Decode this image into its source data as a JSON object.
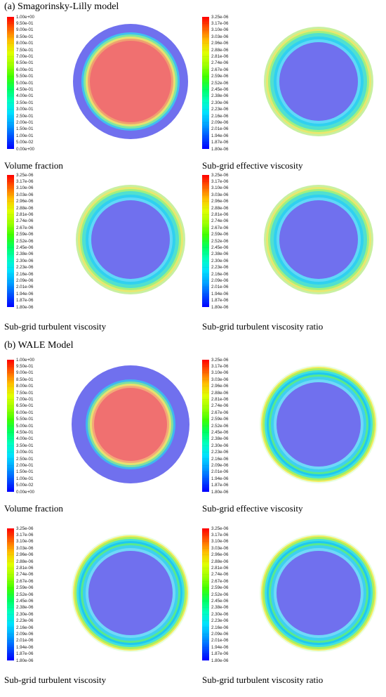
{
  "sections": [
    {
      "title": "(a) Smagorinsky-Lilly model",
      "panels": [
        {
          "caption": "Volume fraction",
          "type": "volume",
          "ticks": [
            "1.00e+00",
            "9.50e-01",
            "9.00e-01",
            "8.50e-01",
            "8.00e-01",
            "7.50e-01",
            "7.00e-01",
            "6.50e-01",
            "6.00e-01",
            "5.50e-01",
            "5.00e-01",
            "4.50e-01",
            "4.00e-01",
            "3.50e-01",
            "3.00e-01",
            "2.50e-01",
            "2.00e-01",
            "1.50e-01",
            "1.00e-01",
            "5.00e-02",
            "0.00e+00"
          ]
        },
        {
          "caption": "Sub-grid effective viscosity",
          "type": "visc",
          "ticks": [
            "3.25e-06",
            "3.17e-06",
            "3.10e-06",
            "3.03e-06",
            "2.96e-06",
            "2.88e-06",
            "2.81e-06",
            "2.74e-06",
            "2.67e-06",
            "2.59e-06",
            "2.52e-06",
            "2.45e-06",
            "2.38e-06",
            "2.30e-06",
            "2.23e-06",
            "2.16e-06",
            "2.09e-06",
            "2.01e-06",
            "1.94e-06",
            "1.87e-06",
            "1.80e-06"
          ]
        },
        {
          "caption": "Sub-grid turbulent viscosity",
          "type": "visc",
          "ticks": [
            "3.25e-06",
            "3.17e-06",
            "3.10e-06",
            "3.03e-06",
            "2.96e-06",
            "2.88e-06",
            "2.81e-06",
            "2.74e-06",
            "2.67e-06",
            "2.59e-06",
            "2.52e-06",
            "2.45e-06",
            "2.38e-06",
            "2.30e-06",
            "2.23e-06",
            "2.16e-06",
            "2.09e-06",
            "2.01e-06",
            "1.94e-06",
            "1.87e-06",
            "1.80e-06"
          ]
        },
        {
          "caption": "Sub-grid turbulent viscosity ratio",
          "type": "visc",
          "ticks": [
            "3.25e-06",
            "3.17e-06",
            "3.10e-06",
            "3.03e-06",
            "2.96e-06",
            "2.88e-06",
            "2.81e-06",
            "2.74e-06",
            "2.67e-06",
            "2.59e-06",
            "2.52e-06",
            "2.45e-06",
            "2.38e-06",
            "2.30e-06",
            "2.23e-06",
            "2.16e-06",
            "2.09e-06",
            "2.01e-06",
            "1.94e-06",
            "1.87e-06",
            "1.80e-06"
          ]
        }
      ]
    },
    {
      "title": "(b) WALE Model",
      "panels": [
        {
          "caption": "Volume fraction",
          "type": "volume",
          "ticks": [
            "1.00e+00",
            "9.50e-01",
            "9.00e-01",
            "8.50e-01",
            "8.00e-01",
            "7.50e-01",
            "7.00e-01",
            "6.50e-01",
            "6.00e-01",
            "5.50e-01",
            "5.00e-01",
            "4.50e-01",
            "4.00e-01",
            "3.50e-01",
            "3.00e-01",
            "2.50e-01",
            "2.00e-01",
            "1.50e-01",
            "1.00e-01",
            "5.00e-02",
            "0.00e+00"
          ]
        },
        {
          "caption": "Sub-grid effective viscosity",
          "type": "visc",
          "ticks": [
            "3.25e-06",
            "3.17e-06",
            "3.10e-06",
            "3.03e-06",
            "2.96e-06",
            "2.88e-06",
            "2.81e-06",
            "2.74e-06",
            "2.67e-06",
            "2.59e-06",
            "2.52e-06",
            "2.45e-06",
            "2.38e-06",
            "2.30e-06",
            "2.23e-06",
            "2.16e-06",
            "2.09e-06",
            "2.01e-06",
            "1.94e-06",
            "1.87e-06",
            "1.80e-06"
          ]
        },
        {
          "caption": "Sub-grid turbulent viscosity",
          "type": "visc",
          "ticks": [
            "3.25e-06",
            "3.17e-06",
            "3.10e-06",
            "3.03e-06",
            "2.96e-06",
            "2.88e-06",
            "2.81e-06",
            "2.74e-06",
            "2.67e-06",
            "2.59e-06",
            "2.52e-06",
            "2.45e-06",
            "2.38e-06",
            "2.30e-06",
            "2.23e-06",
            "2.16e-06",
            "2.09e-06",
            "2.01e-06",
            "1.94e-06",
            "1.87e-06",
            "1.80e-06"
          ]
        },
        {
          "caption": "Sub-grid turbulent viscosity ratio",
          "type": "visc",
          "ticks": [
            "3.25e-06",
            "3.17e-06",
            "3.10e-06",
            "3.03e-06",
            "2.96e-06",
            "2.88e-06",
            "2.81e-06",
            "2.74e-06",
            "2.67e-06",
            "2.59e-06",
            "2.52e-06",
            "2.45e-06",
            "2.38e-06",
            "2.30e-06",
            "2.23e-06",
            "2.16e-06",
            "2.09e-06",
            "2.01e-06",
            "1.94e-06",
            "1.87e-06",
            "1.80e-06"
          ]
        }
      ]
    }
  ],
  "colors": {
    "colormap": [
      "#0000ff",
      "#0050ff",
      "#00a0ff",
      "#00e0ff",
      "#00ffc0",
      "#00ff60",
      "#40ff00",
      "#a0ff00",
      "#e0ff00",
      "#ffc000",
      "#ff6000",
      "#ff0000"
    ],
    "background": "#7070ee",
    "volume_core": "#f07070"
  }
}
